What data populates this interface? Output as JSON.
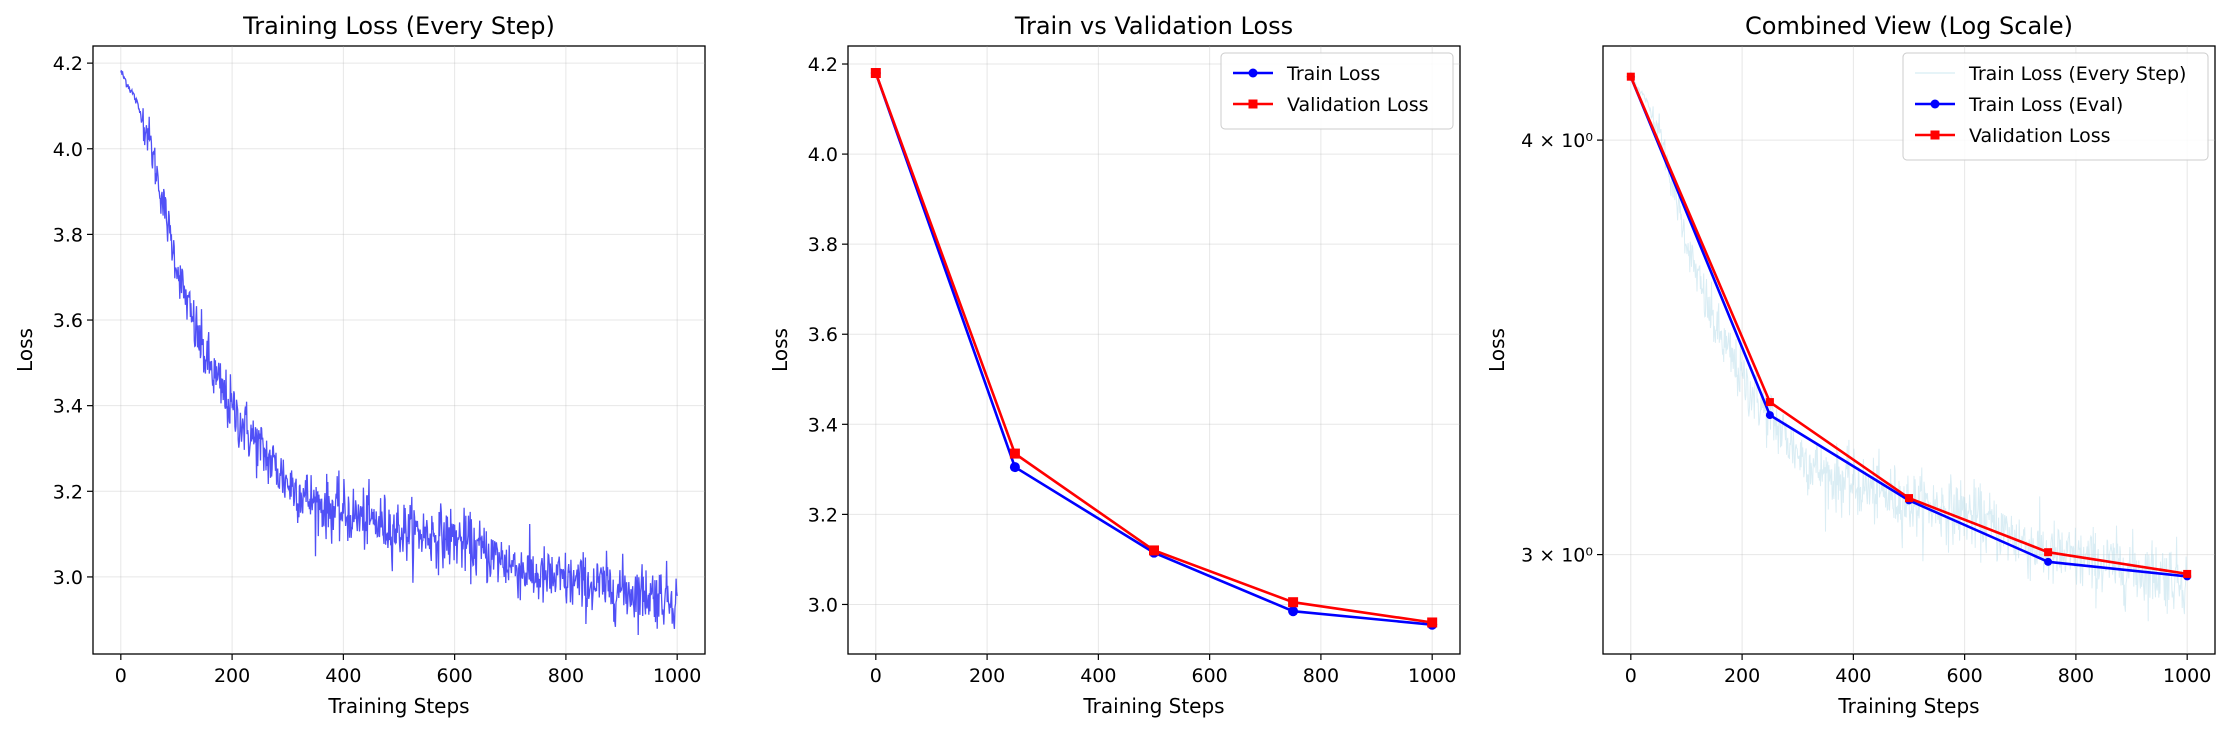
{
  "chart_data": [
    {
      "type": "line",
      "title": "Training Loss (Every Step)",
      "xlabel": "Training Steps",
      "ylabel": "Loss",
      "xlim": [
        -50,
        1050
      ],
      "ylim": [
        2.82,
        4.24
      ],
      "xticks": [
        0,
        200,
        400,
        600,
        800,
        1000
      ],
      "yticks": [
        3.0,
        3.2,
        3.4,
        3.6,
        3.8,
        4.0,
        4.2
      ],
      "ytick_labels": [
        "3.0",
        "3.2",
        "3.4",
        "3.6",
        "3.8",
        "4.0",
        "4.2"
      ],
      "grid": true,
      "series": [
        {
          "color": "#4747f5",
          "kind": "every_step",
          "approx_curve": {
            "steps": [
              0,
              25,
              50,
              75,
              100,
              125,
              150,
              175,
              200,
              250,
              300,
              350,
              400,
              450,
              500,
              550,
              600,
              650,
              700,
              750,
              800,
              850,
              900,
              950,
              1000
            ],
            "values": [
              4.18,
              4.12,
              4.03,
              3.88,
              3.73,
              3.61,
              3.52,
              3.45,
              3.39,
              3.3,
              3.22,
              3.17,
              3.15,
              3.13,
              3.11,
              3.1,
              3.09,
              3.06,
              3.03,
              3.0,
              2.99,
              2.98,
              2.97,
              2.96,
              2.95
            ]
          }
        }
      ]
    },
    {
      "type": "line",
      "title": "Train vs Validation Loss",
      "xlabel": "Training Steps",
      "ylabel": "Loss",
      "xlim": [
        -50,
        1050
      ],
      "ylim": [
        2.89,
        4.24
      ],
      "xticks": [
        0,
        200,
        400,
        600,
        800,
        1000
      ],
      "yticks": [
        3.0,
        3.2,
        3.4,
        3.6,
        3.8,
        4.0,
        4.2
      ],
      "ytick_labels": [
        "3.0",
        "3.2",
        "3.4",
        "3.6",
        "3.8",
        "4.0",
        "4.2"
      ],
      "grid": true,
      "legend": "top-right",
      "series": [
        {
          "name": "Train Loss",
          "color": "#0000ff",
          "marker": "circle",
          "x": [
            0,
            250,
            500,
            750,
            1000
          ],
          "values": [
            4.18,
            3.305,
            3.115,
            2.985,
            2.955
          ]
        },
        {
          "name": "Validation Loss",
          "color": "#ff0000",
          "marker": "square",
          "x": [
            0,
            250,
            500,
            750,
            1000
          ],
          "values": [
            4.18,
            3.335,
            3.12,
            3.005,
            2.96
          ]
        }
      ]
    },
    {
      "type": "line",
      "title": "Combined View (Log Scale)",
      "xlabel": "Training Steps",
      "ylabel": "Loss",
      "yscale": "log",
      "xlim": [
        -50,
        1050
      ],
      "ylim": [
        2.8,
        4.27
      ],
      "xticks": [
        0,
        200,
        400,
        600,
        800,
        1000
      ],
      "yticks": [
        3.0,
        4.0
      ],
      "ytick_labels": [
        "3 × 10⁰",
        "4 × 10⁰"
      ],
      "grid": true,
      "legend": "top-right",
      "series": [
        {
          "name": "Train Loss (Every Step)",
          "color": "#add8e6",
          "kind": "every_step",
          "ref": 0
        },
        {
          "name": "Train Loss (Eval)",
          "color": "#0000ff",
          "marker": "circle",
          "x": [
            0,
            250,
            500,
            750,
            1000
          ],
          "values": [
            4.18,
            3.305,
            3.115,
            2.985,
            2.955
          ]
        },
        {
          "name": "Validation Loss",
          "color": "#ff0000",
          "marker": "square",
          "x": [
            0,
            250,
            500,
            750,
            1000
          ],
          "values": [
            4.18,
            3.335,
            3.12,
            3.005,
            2.96
          ]
        }
      ]
    }
  ]
}
